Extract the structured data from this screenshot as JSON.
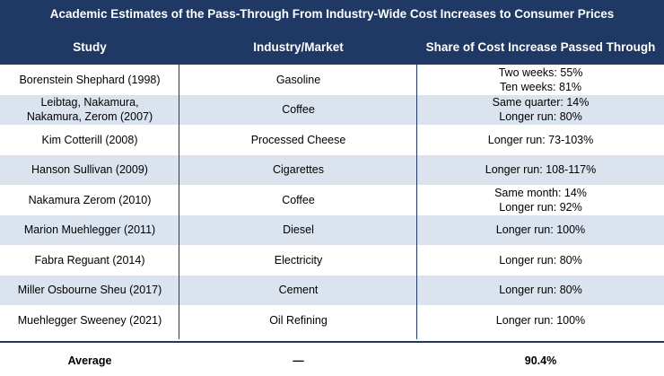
{
  "title": "Academic Estimates of the Pass-Through From Industry-Wide Cost Increases to Consumer Prices",
  "columns": {
    "study": "Study",
    "industry": "Industry/Market",
    "share": "Share of Cost Increase Passed Through"
  },
  "rows": [
    {
      "study": "Borenstein Shephard (1998)",
      "industry": "Gasoline",
      "share": "Two weeks: 55%\nTen weeks: 81%"
    },
    {
      "study": "Leibtag, Nakamura,\nNakamura, Zerom (2007)",
      "industry": "Coffee",
      "share": "Same quarter: 14%\nLonger run: 80%"
    },
    {
      "study": "Kim Cotterill (2008)",
      "industry": "Processed Cheese",
      "share": "Longer run: 73-103%"
    },
    {
      "study": "Hanson Sullivan (2009)",
      "industry": "Cigarettes",
      "share": "Longer run: 108-117%"
    },
    {
      "study": "Nakamura Zerom (2010)",
      "industry": "Coffee",
      "share": "Same month: 14%\nLonger run: 92%"
    },
    {
      "study": "Marion Muehlegger (2011)",
      "industry": "Diesel",
      "share": "Longer run: 100%"
    },
    {
      "study": "Fabra Reguant (2014)",
      "industry": "Electricity",
      "share": "Longer run: 80%"
    },
    {
      "study": "Miller Osbourne Sheu (2017)",
      "industry": "Cement",
      "share": "Longer run: 80%"
    },
    {
      "study": "Muehlegger Sweeney (2021)",
      "industry": "Oil Refining",
      "share": "Longer run: 100%"
    }
  ],
  "average": {
    "label": "Average",
    "industry": "—",
    "value": "90.4%"
  },
  "colors": {
    "header_bg": "#1f3864",
    "alt_row_bg": "#dbe3ee"
  }
}
